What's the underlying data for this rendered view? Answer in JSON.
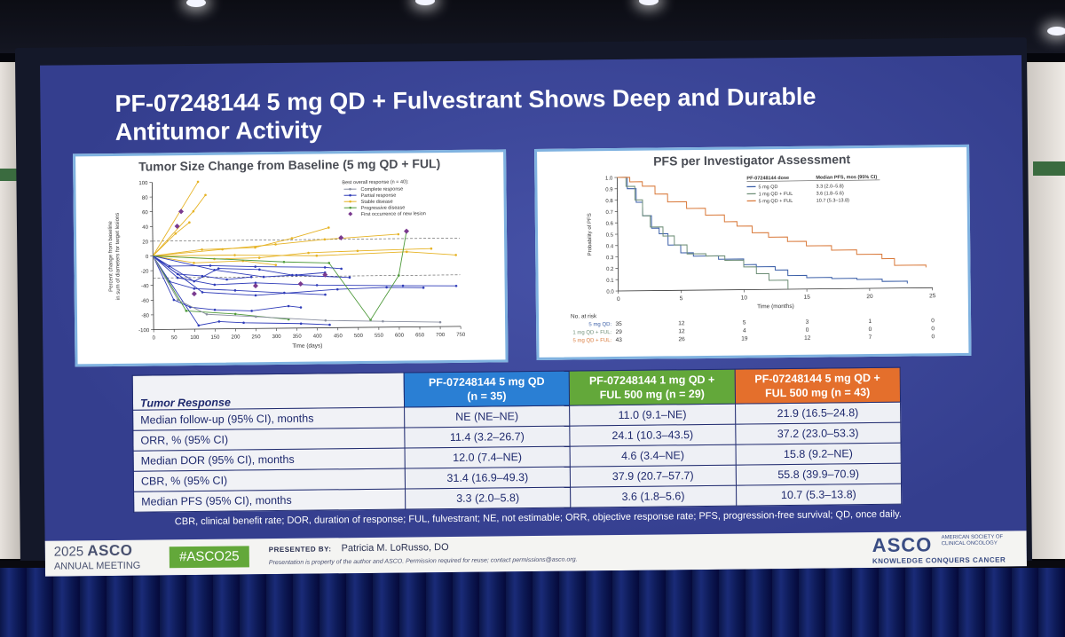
{
  "slide": {
    "title": "PF-07248144 5 mg QD + Fulvestrant Shows Deep and Durable Antitumor Activity"
  },
  "tumor_chart": {
    "title": "Tumor Size Change from Baseline (5 mg QD + FUL)",
    "ylabel_line1": "Percent change from baseline",
    "ylabel_line2": "in sum of diameters for target lesions",
    "xlabel": "Time (days)",
    "x_ticks": [
      "0",
      "50",
      "100",
      "150",
      "200",
      "250",
      "300",
      "350",
      "400",
      "450",
      "500",
      "550",
      "600",
      "650",
      "700",
      "750"
    ],
    "y_ticks": [
      "100",
      "80",
      "60",
      "40",
      "20",
      "0",
      "-20",
      "-40",
      "-60",
      "-80",
      "-100"
    ],
    "legend_title": "Best overall response (n = 40):",
    "legend": [
      {
        "label": "Complete response",
        "color": "#8a8fa0"
      },
      {
        "label": "Partial response",
        "color": "#2e3bb8"
      },
      {
        "label": "Stable disease",
        "color": "#e6b325"
      },
      {
        "label": "Progressive disease",
        "color": "#4e9a3a"
      },
      {
        "label": "First occurrence of new lesion",
        "color": "#7a3a8f"
      }
    ]
  },
  "pfs_chart": {
    "title": "PFS per Investigator Assessment",
    "ylabel": "Probability of PFS",
    "xlabel": "Time (months)",
    "x_ticks": [
      "0",
      "5",
      "10",
      "15",
      "20",
      "25"
    ],
    "y_ticks": [
      "1.0",
      "0.9",
      "0.8",
      "0.7",
      "0.6",
      "0.5",
      "0.4",
      "0.3",
      "0.2",
      "0.1",
      "0.0"
    ],
    "legend_header_dose": "PF-07248144 dose",
    "legend_header_pfs": "Median PFS, mos (95% CI)",
    "legend": [
      {
        "label": "5 mg QD",
        "value": "3.3 (2.0–5.8)",
        "color": "#3b5fa8"
      },
      {
        "label": "1 mg QD + FUL",
        "value": "3.6 (1.8–5.6)",
        "color": "#6f8f78"
      },
      {
        "label": "5 mg QD + FUL",
        "value": "10.7 (5.3–13.8)",
        "color": "#d9793a"
      }
    ],
    "risk_title": "No. at risk",
    "risk_rows": [
      {
        "label": "5 mg QD",
        "counts": [
          "35",
          "12",
          "5",
          "3",
          "1",
          "0"
        ]
      },
      {
        "label": "1 mg QD + FUL",
        "counts": [
          "29",
          "12",
          "4",
          "0",
          "0",
          "0"
        ]
      },
      {
        "label": "5 mg QD + FUL",
        "counts": [
          "43",
          "26",
          "19",
          "12",
          "7",
          "0"
        ]
      }
    ]
  },
  "table": {
    "header_label": "Tumor Response",
    "col1_line1": "PF-07248144 5 mg QD",
    "col1_line2": "(n = 35)",
    "col2_line1": "PF-07248144 1 mg QD +",
    "col2_line2": "FUL 500 mg (n = 29)",
    "col3_line1": "PF-07248144 5 mg QD +",
    "col3_line2": "FUL 500 mg (n = 43)",
    "rows": [
      {
        "label": "Median follow-up (95% CI), months",
        "c1": "NE (NE–NE)",
        "c2": "11.0 (9.1–NE)",
        "c3": "21.9 (16.5–24.8)"
      },
      {
        "label": "ORR, % (95% CI)",
        "c1": "11.4 (3.2–26.7)",
        "c2": "24.1 (10.3–43.5)",
        "c3": "37.2 (23.0–53.3)"
      },
      {
        "label": "Median DOR (95% CI), months",
        "c1": "12.0 (7.4–NE)",
        "c2": "4.6 (3.4–NE)",
        "c3": "15.8 (9.2–NE)"
      },
      {
        "label": "CBR, % (95% CI)",
        "c1": "31.4 (16.9–49.3)",
        "c2": "37.9 (20.7–57.7)",
        "c3": "55.8 (39.9–70.9)"
      },
      {
        "label": "Median PFS (95% CI), months",
        "c1": "3.3 (2.0–5.8)",
        "c2": "3.6 (1.8–5.6)",
        "c3": "10.7 (5.3–13.8)"
      }
    ]
  },
  "footnote": "CBR, clinical benefit rate; DOR, duration of response; FUL, fulvestrant; NE, not estimable; ORR, objective response rate; PFS, progression-free survival; QD, once daily.",
  "footer": {
    "year": "2025",
    "brand": "ASCO",
    "meeting": "ANNUAL MEETING",
    "hashtag": "#ASCO25",
    "presented_by_label": "PRESENTED BY:",
    "presenter": "Patricia M. LoRusso, DO",
    "disclaimer": "Presentation is property of the author and ASCO. Permission required for reuse; contact permissions@asco.org.",
    "right_brand": "ASCO",
    "society": "AMERICAN SOCIETY OF CLINICAL ONCOLOGY",
    "tagline": "KNOWLEDGE CONQUERS CANCER"
  },
  "colors": {
    "slide_bg": "#3a4599",
    "panel_border": "#7fb2e0",
    "header_blue": "#2a7fd4",
    "header_green": "#63a83a",
    "header_orange": "#e46f2c"
  }
}
